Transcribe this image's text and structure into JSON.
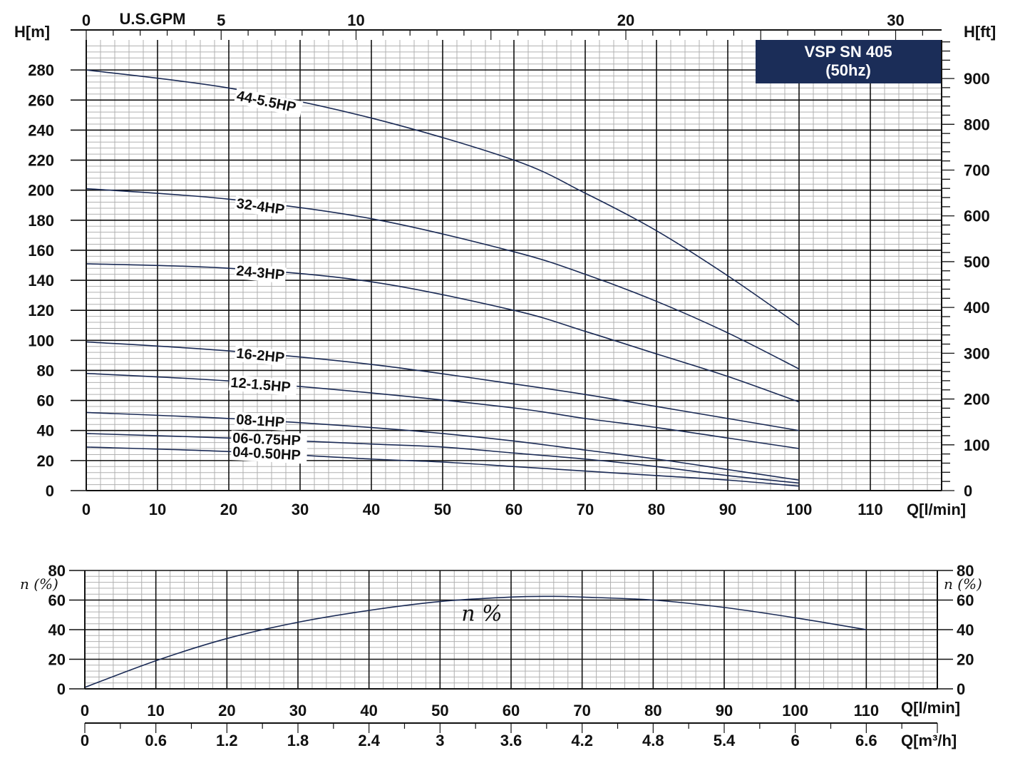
{
  "badge": {
    "line1": "VSP SN 405",
    "line2": "(50hz)"
  },
  "colors": {
    "curve": "#1a2a55",
    "grid_major": "#111111",
    "grid_minor": "#b0b0b0",
    "badge_bg": "#1b2d58"
  },
  "chart_data": [
    {
      "type": "line",
      "title": "",
      "xlabel": "Q[l/min]",
      "ylabel": "H[m]",
      "y2label": "H[ft]",
      "x2label": "U.S.GPM",
      "xlim": [
        0,
        120
      ],
      "ylim": [
        0,
        300
      ],
      "y2lim_ft": [
        0,
        990
      ],
      "xticks": [
        "0",
        "10",
        "20",
        "30",
        "40",
        "50",
        "60",
        "70",
        "80",
        "90",
        "100",
        "110"
      ],
      "yticks": [
        "0",
        "20",
        "40",
        "60",
        "80",
        "100",
        "120",
        "140",
        "160",
        "180",
        "200",
        "220",
        "240",
        "260",
        "280"
      ],
      "y2ticks": [
        "0",
        "100",
        "200",
        "300",
        "400",
        "500",
        "600",
        "700",
        "800",
        "900"
      ],
      "x2ticks": [
        "0",
        "5",
        "10",
        "20",
        "30"
      ],
      "x2ticks_values": [
        0,
        5,
        10,
        20,
        30
      ],
      "grid": true,
      "series": [
        {
          "name": "44-5.5HP",
          "x": [
            0,
            20,
            40,
            60,
            70,
            80,
            90,
            100
          ],
          "y": [
            280,
            268,
            248,
            220,
            198,
            173,
            143,
            110
          ]
        },
        {
          "name": "32-4HP",
          "x": [
            0,
            20,
            40,
            60,
            70,
            80,
            90,
            100
          ],
          "y": [
            201,
            194,
            181,
            159,
            144,
            126,
            105,
            81
          ]
        },
        {
          "name": "24-3HP",
          "x": [
            0,
            20,
            40,
            60,
            70,
            80,
            90,
            100
          ],
          "y": [
            151,
            148,
            139,
            120,
            106,
            91,
            76,
            59
          ]
        },
        {
          "name": "16-2HP",
          "x": [
            0,
            20,
            40,
            60,
            70,
            80,
            90,
            100
          ],
          "y": [
            99,
            93,
            84,
            71,
            64,
            56,
            48,
            40
          ]
        },
        {
          "name": "12-1.5HP",
          "x": [
            0,
            20,
            40,
            60,
            70,
            80,
            90,
            100
          ],
          "y": [
            78,
            73,
            65,
            55,
            48,
            42,
            35,
            28
          ]
        },
        {
          "name": "08-1HP",
          "x": [
            0,
            20,
            40,
            50,
            60,
            70,
            80,
            90,
            100
          ],
          "y": [
            52,
            48,
            42,
            38,
            33,
            27,
            21,
            14,
            7
          ]
        },
        {
          "name": "06-0.75HP",
          "x": [
            0,
            20,
            40,
            50,
            60,
            70,
            80,
            90,
            100
          ],
          "y": [
            38,
            35,
            31,
            29,
            25,
            21,
            16,
            10,
            5
          ]
        },
        {
          "name": "04-0.50HP",
          "x": [
            0,
            20,
            40,
            50,
            60,
            70,
            80,
            90,
            100
          ],
          "y": [
            29,
            26,
            21,
            19,
            16,
            13,
            10,
            7,
            3
          ]
        }
      ]
    },
    {
      "type": "line",
      "title": "",
      "xlabel": "Q[l/min]",
      "x2label": "Q[m³/h]",
      "ylabel": "n (%)",
      "y2label": "n (%)",
      "xlim": [
        0,
        120
      ],
      "ylim": [
        0,
        80
      ],
      "xticks": [
        "0",
        "10",
        "20",
        "30",
        "40",
        "50",
        "60",
        "70",
        "80",
        "90",
        "100",
        "110"
      ],
      "x2ticks": [
        "0",
        "0.6",
        "1.2",
        "1.8",
        "2.4",
        "3",
        "3.6",
        "4.2",
        "4.8",
        "5.4",
        "6",
        "6.6"
      ],
      "yticks": [
        "0",
        "20",
        "40",
        "60",
        "80"
      ],
      "grid": true,
      "series": [
        {
          "name": "n %",
          "x": [
            0,
            10,
            20,
            30,
            40,
            50,
            60,
            66,
            70,
            80,
            90,
            100,
            110
          ],
          "y": [
            1,
            19,
            34,
            45,
            53,
            59,
            62,
            62.5,
            62,
            60,
            55,
            48,
            40
          ]
        }
      ]
    }
  ]
}
